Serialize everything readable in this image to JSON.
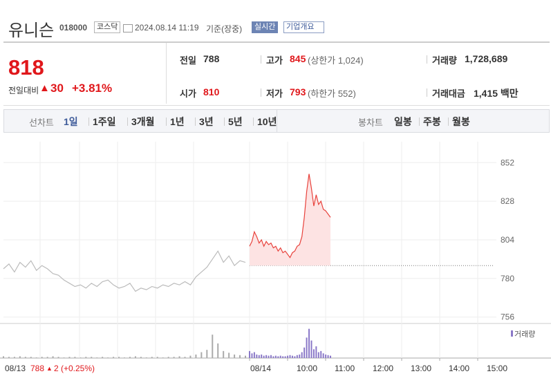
{
  "header": {
    "name": "유니슨",
    "code": "018000",
    "market": "코스닥",
    "datetime": "2024.08.14 11:19",
    "basis": "기준(장중)",
    "realtime": "실시간",
    "overview": "기업개요"
  },
  "quote": {
    "price": "818",
    "change_label": "전일대비",
    "sign": "▲",
    "change": "30",
    "change_pct": "+3.81%",
    "items": [
      {
        "label": "전일",
        "value": "788"
      },
      {
        "label": "고가",
        "value": "845",
        "extra": "(상한가 1,024)"
      },
      {
        "label": "거래량",
        "value": "1,728,689"
      },
      {
        "label": "시가",
        "value": "810"
      },
      {
        "label": "저가",
        "value": "793",
        "extra": "(하한가 552)"
      },
      {
        "label": "거래대금",
        "value": "1,415 백만"
      }
    ]
  },
  "tabs": {
    "line_label": "선차트",
    "line": [
      "1일",
      "1주일",
      "3개월",
      "1년",
      "3년",
      "5년",
      "10년"
    ],
    "candle_label": "봉차트",
    "candle": [
      "일봉",
      "주봉",
      "월봉"
    ]
  },
  "chart_data": {
    "type": "line",
    "ylim": [
      752,
      865
    ],
    "yticks": [
      756,
      780,
      804,
      828,
      852
    ],
    "baseline": 788,
    "xticks": [
      "08/14",
      "10:00",
      "11:00",
      "12:00",
      "13:00",
      "14:00",
      "15:00"
    ],
    "prev": {
      "color": "#bbbbbb",
      "values": [
        786,
        789,
        784,
        790,
        787,
        791,
        785,
        788,
        786,
        783,
        782,
        779,
        777,
        775,
        776,
        774,
        777,
        775,
        778,
        779,
        776,
        774,
        775,
        777,
        772,
        774,
        773,
        775,
        774,
        776,
        775,
        777,
        776,
        778,
        776,
        781,
        784,
        787,
        792,
        797,
        790,
        794,
        788,
        791,
        790
      ],
      "volume": [
        3,
        2,
        2,
        3,
        2,
        2,
        1,
        2,
        2,
        3,
        2,
        1,
        2,
        2,
        1,
        2,
        2,
        1,
        2,
        1,
        2,
        2,
        1,
        2,
        3,
        2,
        1,
        2,
        2,
        1,
        2,
        2,
        3,
        2,
        4,
        6,
        10,
        14,
        40,
        25,
        12,
        9,
        6,
        5,
        4
      ]
    },
    "today": {
      "color": "#e8413b",
      "values": [
        800,
        803,
        809,
        806,
        802,
        804,
        800,
        803,
        801,
        802,
        799,
        800,
        797,
        799,
        796,
        797,
        795,
        793,
        796,
        797,
        800,
        801,
        806,
        818,
        834,
        845,
        836,
        825,
        832,
        826,
        828,
        823,
        822,
        820,
        818
      ],
      "volume": [
        12,
        8,
        10,
        6,
        5,
        6,
        4,
        5,
        4,
        5,
        3,
        4,
        3,
        4,
        3,
        3,
        4,
        5,
        4,
        3,
        5,
        6,
        10,
        18,
        35,
        50,
        30,
        15,
        20,
        10,
        12,
        8,
        6,
        5,
        4
      ]
    },
    "vlim": [
      0,
      52
    ],
    "volume_label": "거래량",
    "footer": {
      "date": "08/13",
      "price": "788",
      "sign": "▲",
      "change": "2",
      "pct": "(+0.25%)"
    }
  }
}
